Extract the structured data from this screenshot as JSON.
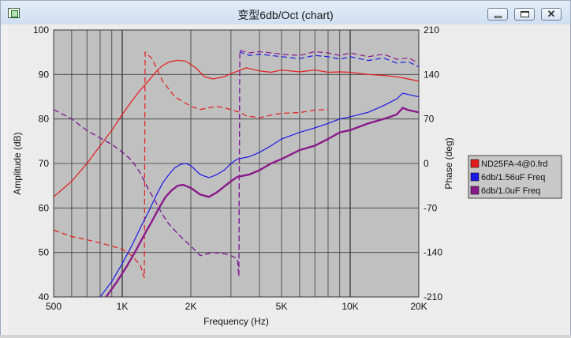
{
  "window": {
    "title": "变型6db/Oct (chart)"
  },
  "chart_data": {
    "type": "line",
    "x_scale": "log",
    "xlim": [
      500,
      20000
    ],
    "ylim": [
      40,
      100
    ],
    "y2lim": [
      -210,
      210
    ],
    "xlabel": "Frequency (Hz)",
    "ylabel": "Amplitude (dB)",
    "y2label": "Phase (deg)",
    "x_ticks": [
      {
        "v": 500,
        "label": "500"
      },
      {
        "v": 1000,
        "label": "1K"
      },
      {
        "v": 2000,
        "label": "2K"
      },
      {
        "v": 5000,
        "label": "5K"
      },
      {
        "v": 10000,
        "label": "10K"
      },
      {
        "v": 20000,
        "label": "20K"
      }
    ],
    "x_grid": [
      500,
      600,
      700,
      800,
      900,
      1000,
      2000,
      3000,
      4000,
      5000,
      6000,
      7000,
      8000,
      9000,
      10000,
      20000
    ],
    "y_ticks": [
      {
        "v": 40,
        "label": "40"
      },
      {
        "v": 50,
        "label": "50"
      },
      {
        "v": 60,
        "label": "60"
      },
      {
        "v": 70,
        "label": "70"
      },
      {
        "v": 80,
        "label": "80"
      },
      {
        "v": 90,
        "label": "90"
      },
      {
        "v": 100,
        "label": "100"
      }
    ],
    "y2_ticks": [
      {
        "v": 210,
        "label": "210"
      },
      {
        "v": 140,
        "label": "140"
      },
      {
        "v": 70,
        "label": "70"
      },
      {
        "v": 0,
        "label": "0"
      },
      {
        "v": -70,
        "label": "-70"
      },
      {
        "v": -140,
        "label": "-140"
      },
      {
        "v": -210,
        "label": "-210"
      }
    ],
    "grid": true,
    "legend": "right",
    "series": [
      {
        "name": "ND25FA-4@0.frd",
        "color": "#e31b1b",
        "amplitude": [
          [
            500,
            62.5
          ],
          [
            600,
            66
          ],
          [
            700,
            70
          ],
          [
            800,
            74
          ],
          [
            900,
            77.5
          ],
          [
            1000,
            81
          ],
          [
            1100,
            84
          ],
          [
            1200,
            86.5
          ],
          [
            1300,
            88.5
          ],
          [
            1400,
            90.5
          ],
          [
            1500,
            92
          ],
          [
            1600,
            92.8
          ],
          [
            1750,
            93.2
          ],
          [
            1900,
            93
          ],
          [
            2100,
            91.5
          ],
          [
            2300,
            89.5
          ],
          [
            2500,
            89
          ],
          [
            2800,
            89.5
          ],
          [
            3000,
            90.2
          ],
          [
            3300,
            91
          ],
          [
            3500,
            91.5
          ],
          [
            4000,
            90.8
          ],
          [
            4500,
            90.5
          ],
          [
            5000,
            91
          ],
          [
            6000,
            90.6
          ],
          [
            7000,
            91
          ],
          [
            8000,
            90.5
          ],
          [
            9000,
            90.6
          ],
          [
            10000,
            90.5
          ],
          [
            12000,
            90
          ],
          [
            14000,
            89.8
          ],
          [
            16000,
            89.5
          ],
          [
            18000,
            89
          ],
          [
            20000,
            88.5
          ]
        ],
        "phase": [
          [
            500,
            -105
          ],
          [
            600,
            -115
          ],
          [
            700,
            -120
          ],
          [
            800,
            -125
          ],
          [
            900,
            -130
          ],
          [
            1000,
            -135
          ],
          [
            1100,
            -145
          ],
          [
            1200,
            -160
          ],
          [
            1250,
            -180
          ],
          [
            1260,
            175
          ],
          [
            1350,
            165
          ],
          [
            1500,
            130
          ],
          [
            1700,
            105
          ],
          [
            2000,
            90
          ],
          [
            2200,
            85
          ],
          [
            2600,
            90
          ],
          [
            3000,
            85
          ],
          [
            3300,
            80
          ],
          [
            3500,
            75
          ],
          [
            4000,
            72
          ],
          [
            4500,
            76
          ],
          [
            5000,
            79
          ],
          [
            6000,
            80
          ],
          [
            7000,
            84
          ],
          [
            8000,
            85
          ]
        ]
      },
      {
        "name": "6db/1.56uF Freq",
        "color": "#1a1ae6",
        "amplitude": [
          [
            800,
            40
          ],
          [
            900,
            43.5
          ],
          [
            1000,
            47.5
          ],
          [
            1100,
            51.5
          ],
          [
            1200,
            55.5
          ],
          [
            1300,
            59
          ],
          [
            1400,
            62.5
          ],
          [
            1500,
            65.5
          ],
          [
            1600,
            67.5
          ],
          [
            1700,
            69
          ],
          [
            1800,
            69.8
          ],
          [
            1900,
            70
          ],
          [
            2000,
            69.5
          ],
          [
            2200,
            67.5
          ],
          [
            2400,
            66.8
          ],
          [
            2600,
            67.5
          ],
          [
            2800,
            68.5
          ],
          [
            3000,
            70
          ],
          [
            3200,
            71
          ],
          [
            3600,
            71.5
          ],
          [
            4000,
            72.5
          ],
          [
            4500,
            74
          ],
          [
            5000,
            75.5
          ],
          [
            6000,
            77
          ],
          [
            7000,
            78
          ],
          [
            8000,
            79
          ],
          [
            9000,
            80
          ],
          [
            10000,
            80.5
          ],
          [
            12000,
            81.5
          ],
          [
            14000,
            83
          ],
          [
            16000,
            84.5
          ],
          [
            17000,
            85.8
          ],
          [
            18000,
            85.5
          ],
          [
            20000,
            85
          ]
        ],
        "phase": [
          [
            500,
            85
          ],
          [
            600,
            70
          ],
          [
            700,
            52
          ],
          [
            800,
            40
          ],
          [
            900,
            30
          ],
          [
            1000,
            18
          ],
          [
            1100,
            5
          ],
          [
            1200,
            -15
          ],
          [
            1300,
            -40
          ],
          [
            1400,
            -60
          ],
          [
            1500,
            -80
          ],
          [
            1600,
            -95
          ],
          [
            1800,
            -115
          ],
          [
            2000,
            -130
          ],
          [
            2200,
            -145
          ],
          [
            2500,
            -140
          ],
          [
            2800,
            -142
          ],
          [
            3000,
            -145
          ],
          [
            3200,
            -150
          ],
          [
            3250,
            -178
          ],
          [
            3280,
            178
          ],
          [
            3300,
            175
          ],
          [
            3600,
            170
          ],
          [
            4000,
            172
          ],
          [
            5000,
            168
          ],
          [
            6000,
            165
          ],
          [
            7000,
            170
          ],
          [
            8000,
            168
          ],
          [
            9000,
            164
          ],
          [
            10000,
            168
          ],
          [
            12000,
            162
          ],
          [
            14000,
            166
          ],
          [
            16000,
            158
          ],
          [
            18000,
            160
          ],
          [
            20000,
            152
          ]
        ]
      },
      {
        "name": "6db/1.0uF Freq",
        "color": "#8a1a8a",
        "amplitude": [
          [
            850,
            40
          ],
          [
            950,
            43.5
          ],
          [
            1050,
            47
          ],
          [
            1150,
            50.5
          ],
          [
            1250,
            54
          ],
          [
            1350,
            57
          ],
          [
            1450,
            60
          ],
          [
            1550,
            62.5
          ],
          [
            1650,
            64
          ],
          [
            1750,
            65
          ],
          [
            1850,
            65.2
          ],
          [
            2000,
            64.5
          ],
          [
            2200,
            63
          ],
          [
            2400,
            62.5
          ],
          [
            2600,
            63.5
          ],
          [
            2800,
            64.8
          ],
          [
            3000,
            66
          ],
          [
            3200,
            67
          ],
          [
            3600,
            67.5
          ],
          [
            4000,
            68.5
          ],
          [
            4500,
            70
          ],
          [
            5000,
            71
          ],
          [
            6000,
            73
          ],
          [
            7000,
            74
          ],
          [
            8000,
            75.5
          ],
          [
            9000,
            77
          ],
          [
            10000,
            77.5
          ],
          [
            12000,
            79
          ],
          [
            14000,
            80
          ],
          [
            16000,
            81
          ],
          [
            17000,
            82.5
          ],
          [
            18000,
            82
          ],
          [
            20000,
            81.5
          ]
        ],
        "phase": [
          [
            500,
            85
          ],
          [
            600,
            70
          ],
          [
            700,
            52
          ],
          [
            800,
            40
          ],
          [
            900,
            30
          ],
          [
            1000,
            18
          ],
          [
            1100,
            5
          ],
          [
            1200,
            -15
          ],
          [
            1300,
            -40
          ],
          [
            1400,
            -60
          ],
          [
            1500,
            -80
          ],
          [
            1600,
            -95
          ],
          [
            1800,
            -115
          ],
          [
            2000,
            -130
          ],
          [
            2200,
            -145
          ],
          [
            2500,
            -140
          ],
          [
            2800,
            -142
          ],
          [
            3000,
            -145
          ],
          [
            3200,
            -150
          ],
          [
            3250,
            -178
          ],
          [
            3280,
            178
          ],
          [
            3300,
            178
          ],
          [
            3600,
            174
          ],
          [
            4000,
            176
          ],
          [
            5000,
            172
          ],
          [
            6000,
            170
          ],
          [
            7000,
            176
          ],
          [
            8000,
            174
          ],
          [
            9000,
            170
          ],
          [
            10000,
            174
          ],
          [
            12000,
            168
          ],
          [
            14000,
            172
          ],
          [
            16000,
            164
          ],
          [
            18000,
            166
          ],
          [
            20000,
            158
          ]
        ]
      }
    ]
  }
}
